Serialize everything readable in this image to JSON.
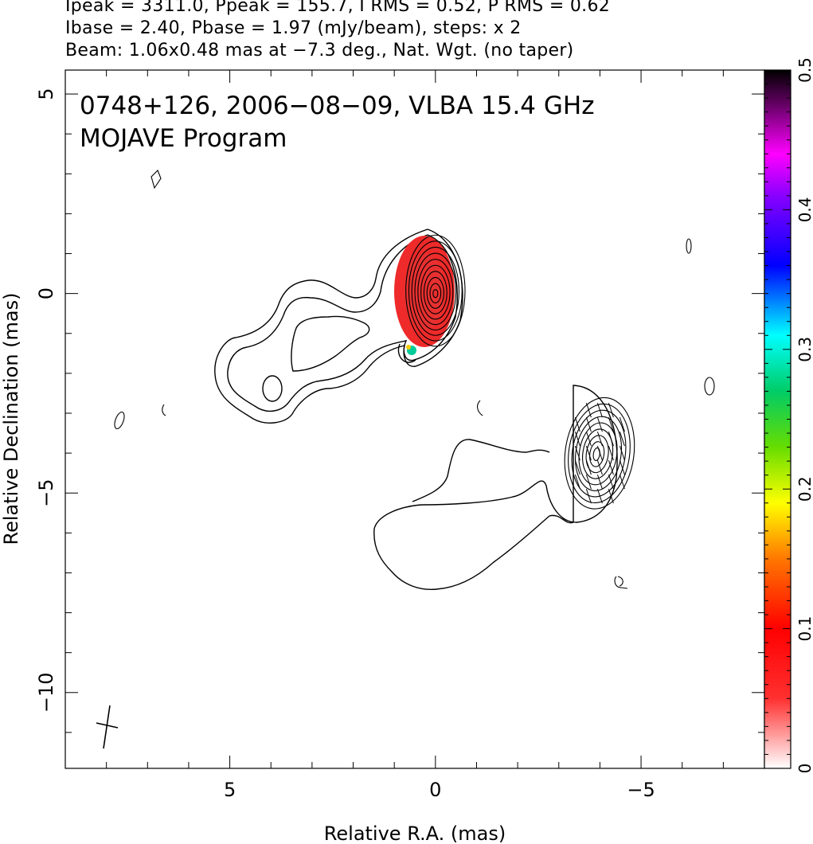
{
  "header": {
    "line1": "Ipeak = 3311.0, Ppeak = 155.7, I RMS = 0.52, P RMS = 0.62",
    "line2": "Ibase = 2.40, Pbase = 1.97 (mJy/beam), steps: x 2",
    "line3": "Beam: 1.06x0.48 mas at −7.3 deg., Nat. Wgt. (no taper)"
  },
  "annotation": {
    "line1": "0748+126, 2006−08−09, VLBA 15.4 GHz",
    "line2": "MOJAVE Program"
  },
  "chart_data": {
    "type": "contour",
    "xlabel": "Relative R.A. (mas)",
    "ylabel": "Relative Declination (mas)",
    "xlim": [
      9.0,
      -8.0
    ],
    "ylim": [
      -11.9,
      5.6
    ],
    "x_ticks": [
      5,
      0,
      -5
    ],
    "x_tick_labels": [
      "5",
      "0",
      "−5"
    ],
    "y_ticks": [
      5,
      0,
      -5,
      -10
    ],
    "y_tick_labels": [
      "5",
      "0",
      "−5",
      "−10"
    ],
    "colorbar": {
      "range": [
        0,
        0.5
      ],
      "ticks": [
        0,
        0.1,
        0.2,
        0.3,
        0.4,
        0.5
      ],
      "tick_labels": [
        "0",
        "0.1",
        "0.2",
        "0.3",
        "0.4",
        "0.5"
      ],
      "colormap": [
        "#ffffff",
        "#ff0000",
        "#ff8800",
        "#ffff00",
        "#00cc00",
        "#00ffff",
        "#0000ff",
        "#ff00ff",
        "#000000"
      ]
    },
    "components": [
      {
        "name": "core",
        "ra": 0.0,
        "dec": 0.0,
        "contour_levels": 10
      },
      {
        "name": "secondary",
        "ra": -4.0,
        "dec": -4.0,
        "contour_levels": 9
      },
      {
        "name": "beam",
        "ra": 8.0,
        "dec": -10.8,
        "major": 1.06,
        "minor": 0.48,
        "pa_deg": -7.3
      }
    ]
  }
}
